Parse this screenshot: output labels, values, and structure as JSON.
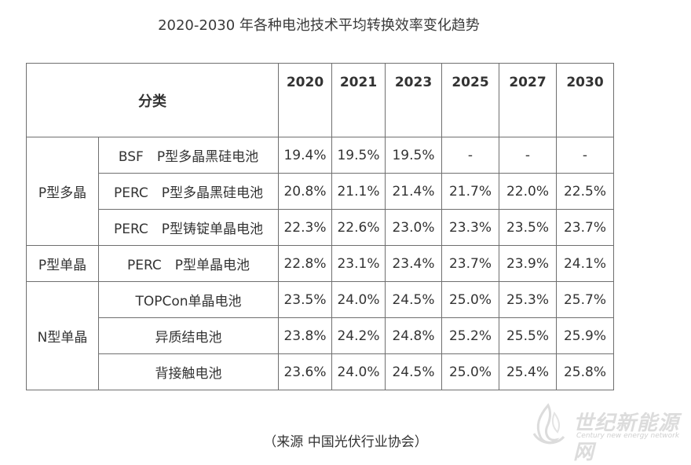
{
  "title": "2020-2030 年各种电池技术平均转换效率变化趋势",
  "table": {
    "header_label": "分类",
    "years": [
      "2020",
      "2021",
      "2023",
      "2025",
      "2027",
      "2030"
    ],
    "groups": [
      {
        "name": "P型多晶",
        "rows": [
          {
            "label": "BSF　P型多晶黑硅电池",
            "values": [
              "19.4%",
              "19.5%",
              "19.5%",
              "-",
              "-",
              "-"
            ]
          },
          {
            "label": "PERC　P型多晶黑硅电池",
            "values": [
              "20.8%",
              "21.1%",
              "21.4%",
              "21.7%",
              "22.0%",
              "22.5%"
            ]
          },
          {
            "label": "PERC　P型铸锭单晶电池",
            "values": [
              "22.3%",
              "22.6%",
              "23.0%",
              "23.3%",
              "23.5%",
              "23.7%"
            ]
          }
        ]
      },
      {
        "name": "P型单晶",
        "rows": [
          {
            "label": "PERC　P型单晶电池",
            "values": [
              "22.8%",
              "23.1%",
              "23.4%",
              "23.7%",
              "23.9%",
              "24.1%"
            ]
          }
        ]
      },
      {
        "name": "N型单晶",
        "rows": [
          {
            "label": "TOPCon单晶电池",
            "values": [
              "23.5%",
              "24.0%",
              "24.5%",
              "25.0%",
              "25.3%",
              "25.7%"
            ]
          },
          {
            "label": "异质结电池",
            "values": [
              "23.8%",
              "24.2%",
              "24.8%",
              "25.2%",
              "25.5%",
              "25.9%"
            ]
          },
          {
            "label": "背接触电池",
            "values": [
              "23.6%",
              "24.0%",
              "24.5%",
              "25.0%",
              "25.4%",
              "25.8%"
            ]
          }
        ]
      }
    ]
  },
  "source": "（来源  中国光伏行业协会）",
  "watermark": {
    "text": "世纪新能源网",
    "subtext": "Century new energy network",
    "color": "#dcdcdc"
  }
}
